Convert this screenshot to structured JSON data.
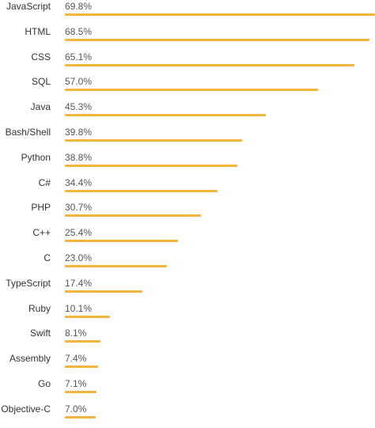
{
  "chart_data": {
    "type": "bar",
    "orientation": "horizontal",
    "categories": [
      "JavaScript",
      "HTML",
      "CSS",
      "SQL",
      "Java",
      "Bash/Shell",
      "Python",
      "C#",
      "PHP",
      "C++",
      "C",
      "TypeScript",
      "Ruby",
      "Swift",
      "Assembly",
      "Go",
      "Objective-C"
    ],
    "values": [
      69.8,
      68.5,
      65.1,
      57.0,
      45.3,
      39.8,
      38.8,
      34.4,
      30.7,
      25.4,
      23.0,
      17.4,
      10.1,
      8.1,
      7.4,
      7.1,
      7.0
    ],
    "value_labels": [
      "69.8%",
      "68.5%",
      "65.1%",
      "57.0%",
      "45.3%",
      "39.8%",
      "38.8%",
      "34.4%",
      "30.7%",
      "25.4%",
      "23.0%",
      "17.4%",
      "10.1%",
      "8.1%",
      "7.4%",
      "7.1%",
      "7.0%"
    ],
    "bar_color": "#f4b53f",
    "xlim": [
      0,
      69.8
    ],
    "grid": false,
    "legend": "none"
  }
}
